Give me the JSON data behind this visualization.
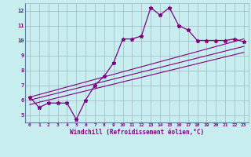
{
  "background_color": "#c8eef0",
  "grid_color": "#a0b8c0",
  "line_color": "#800080",
  "marker_color": "#800080",
  "xlabel": "Windchill (Refroidissement éolien,°C)",
  "xlabel_color": "#800080",
  "tick_color": "#800080",
  "spine_color": "#6080a0",
  "ylim": [
    4.5,
    12.5
  ],
  "xlim": [
    -0.5,
    23.5
  ],
  "yticks": [
    5,
    6,
    7,
    8,
    9,
    10,
    11,
    12
  ],
  "xticks": [
    0,
    1,
    2,
    3,
    4,
    5,
    6,
    7,
    8,
    9,
    10,
    11,
    12,
    13,
    14,
    15,
    16,
    17,
    18,
    19,
    20,
    21,
    22,
    23
  ],
  "series1_x": [
    0,
    1,
    2,
    3,
    4,
    5,
    6,
    7,
    8,
    9,
    10,
    11,
    12,
    13,
    14,
    15,
    16,
    17,
    18,
    19,
    20,
    21,
    22,
    23
  ],
  "series1_y": [
    6.2,
    5.5,
    5.8,
    5.8,
    5.8,
    4.7,
    6.0,
    7.0,
    7.6,
    8.5,
    10.1,
    10.1,
    10.3,
    12.2,
    11.7,
    12.2,
    11.0,
    10.7,
    10.0,
    10.0,
    10.0,
    10.0,
    10.1,
    9.9
  ],
  "series2_x": [
    0,
    23
  ],
  "series2_y": [
    6.2,
    10.1
  ],
  "series3_x": [
    0,
    23
  ],
  "series3_y": [
    6.0,
    9.6
  ],
  "series4_x": [
    0,
    23
  ],
  "series4_y": [
    5.7,
    9.2
  ]
}
